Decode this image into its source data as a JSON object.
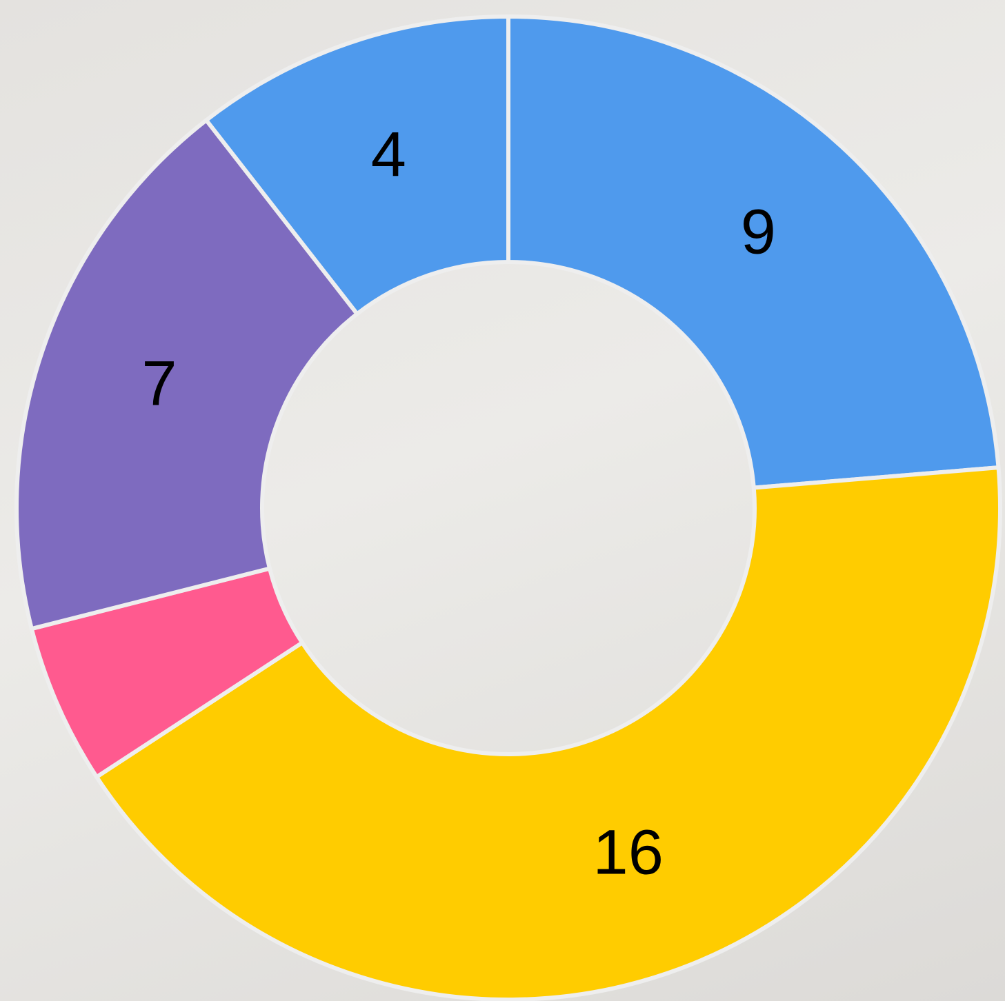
{
  "chart_data": {
    "type": "doughnut",
    "values": [
      9,
      16,
      2,
      7,
      4
    ],
    "value_labels": [
      "9",
      "16",
      null,
      "7",
      "4"
    ],
    "colors": [
      "#4f9aed",
      "#ffcc00",
      "#ff5a8f",
      "#7e6bbf",
      "#4f9aed"
    ]
  }
}
